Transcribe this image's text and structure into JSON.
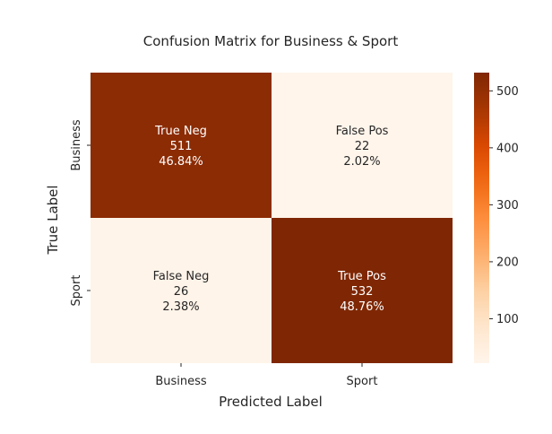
{
  "chart_data": {
    "type": "heatmap",
    "title": "Confusion Matrix for Business & Sport",
    "xlabel": "Predicted Label",
    "ylabel": "True Label",
    "x_categories": [
      "Business",
      "Sport"
    ],
    "y_categories": [
      "Business",
      "Sport"
    ],
    "cells": [
      [
        {
          "label": "True Neg",
          "count": 511,
          "percent": "46.84%"
        },
        {
          "label": "False Pos",
          "count": 22,
          "percent": "2.02%"
        }
      ],
      [
        {
          "label": "False Neg",
          "count": 26,
          "percent": "2.38%"
        },
        {
          "label": "True Pos",
          "count": 532,
          "percent": "48.76%"
        }
      ]
    ],
    "colorbar": {
      "colormap": "Oranges",
      "range": [
        22,
        532
      ],
      "ticks": [
        100,
        200,
        300,
        400,
        500
      ]
    },
    "colors": {
      "low": "#fff5eb",
      "mid": "#fd8d3c",
      "high": "#7f2704",
      "text_on_dark": "#ffffff",
      "text_on_light": "#262626"
    }
  }
}
